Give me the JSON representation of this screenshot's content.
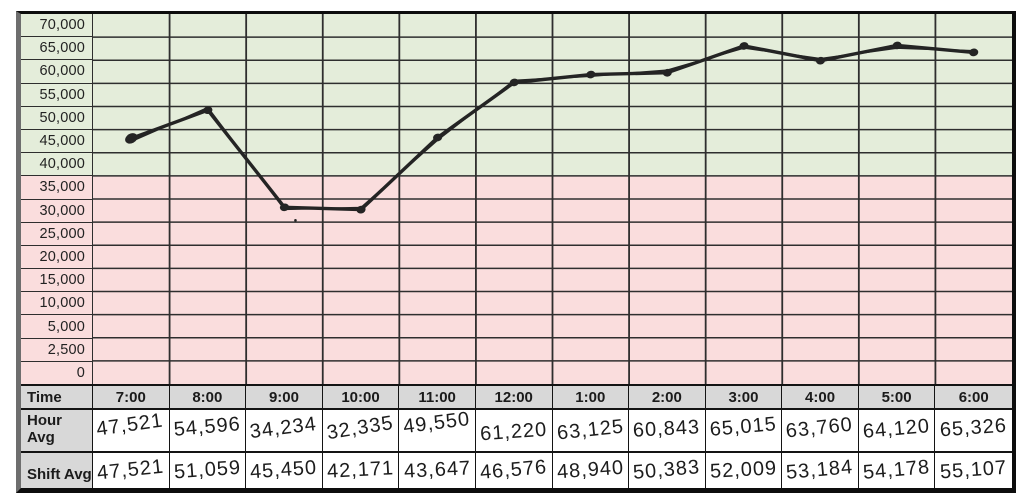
{
  "chart_data": {
    "type": "line",
    "title": "",
    "x_categories": [
      "7:00",
      "8:00",
      "9:00",
      "10:00",
      "11:00",
      "12:00",
      "1:00",
      "2:00",
      "3:00",
      "4:00",
      "5:00",
      "6:00"
    ],
    "y_tick_labels": [
      "70,000",
      "65,000",
      "60,000",
      "55,000",
      "50,000",
      "45,000",
      "40,000",
      "35,000",
      "30,000",
      "25,000",
      "20,000",
      "15,000",
      "10,000",
      "5,000",
      "2,500",
      "0"
    ],
    "y_tick_values": [
      70000,
      65000,
      60000,
      55000,
      50000,
      45000,
      40000,
      35000,
      30000,
      25000,
      20000,
      15000,
      10000,
      5000,
      2500,
      0
    ],
    "ylim": [
      0,
      70000
    ],
    "grid": true,
    "legend": "none",
    "hand_drawn": true,
    "series": [
      {
        "name": "Hour Avg",
        "values": [
          47521,
          54596,
          34234,
          32335,
          49550,
          61220,
          63125,
          60843,
          65015,
          63760,
          64120,
          65326
        ]
      },
      {
        "name": "Shift Avg",
        "values": [
          47521,
          51059,
          45450,
          42171,
          43647,
          46576,
          48940,
          50383,
          52009,
          53184,
          54178,
          55107
        ]
      }
    ],
    "drawn_series_name": "Hour Avg",
    "drawn_point_values": [
      45600,
      51700,
      30700,
      30200,
      45800,
      57700,
      59400,
      59800,
      65600,
      62400,
      65700,
      64200
    ],
    "zones": [
      {
        "label": "upper-green-band",
        "rows": 7,
        "color": "#e4edda"
      },
      {
        "label": "lower-pink-band",
        "rows": 9,
        "color": "#fadddd"
      }
    ]
  },
  "table": {
    "time_label": "Time",
    "hour_avg_label": "Hour Avg",
    "shift_avg_label": "Shift Avg",
    "times": [
      "7:00",
      "8:00",
      "9:00",
      "10:00",
      "11:00",
      "12:00",
      "1:00",
      "2:00",
      "3:00",
      "4:00",
      "5:00",
      "6:00"
    ],
    "hour_avg": [
      "47,521",
      "54,596",
      "34,234",
      "32,335",
      "49,550",
      "61,220",
      "63,125",
      "60,843",
      "65,015",
      "63,760",
      "64,120",
      "65,326"
    ],
    "shift_avg": [
      "47,521",
      "51,059",
      "45,450",
      "42,171",
      "43,647",
      "46,576",
      "48,940",
      "50,383",
      "52,009",
      "53,184",
      "54,178",
      "55,107"
    ]
  },
  "colors": {
    "green_zone": "#e4edda",
    "pink_zone": "#fadddd",
    "header_gray": "#d8d8d8",
    "grid_line": "#2e2e2e",
    "ink": "#242424",
    "outer_border": "#0d0d0d",
    "left_border_gray": "#6e6e6e",
    "cell_white": "#ffffff"
  }
}
